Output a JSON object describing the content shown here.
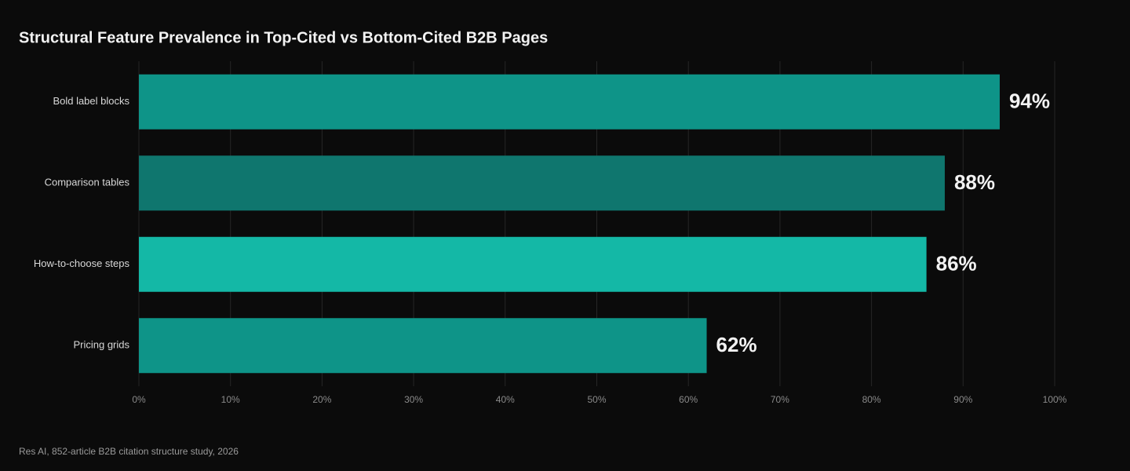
{
  "chart_data": {
    "type": "bar",
    "orientation": "horizontal",
    "title": "Structural Feature Prevalence in Top-Cited vs Bottom-Cited B2B Pages",
    "categories": [
      "Bold label blocks",
      "Comparison tables",
      "How-to-choose steps",
      "Pricing grids"
    ],
    "values": [
      94,
      88,
      86,
      62
    ],
    "value_labels": [
      "94%",
      "88%",
      "86%",
      "62%"
    ],
    "colors": [
      "#0e9488",
      "#0f766e",
      "#14b8a6",
      "#0e9488"
    ],
    "xlim": [
      0,
      100
    ],
    "xticks": [
      {
        "value": 0,
        "label": "0%"
      },
      {
        "value": 10,
        "label": "10%"
      },
      {
        "value": 20,
        "label": "20%"
      },
      {
        "value": 30,
        "label": "30%"
      },
      {
        "value": 40,
        "label": "40%"
      },
      {
        "value": 50,
        "label": "50%"
      },
      {
        "value": 60,
        "label": "60%"
      },
      {
        "value": 70,
        "label": "70%"
      },
      {
        "value": 80,
        "label": "80%"
      },
      {
        "value": 90,
        "label": "90%"
      },
      {
        "value": 100,
        "label": "100%"
      }
    ],
    "grid": true,
    "source": "Res AI, 852-article B2B citation structure study, 2026"
  }
}
